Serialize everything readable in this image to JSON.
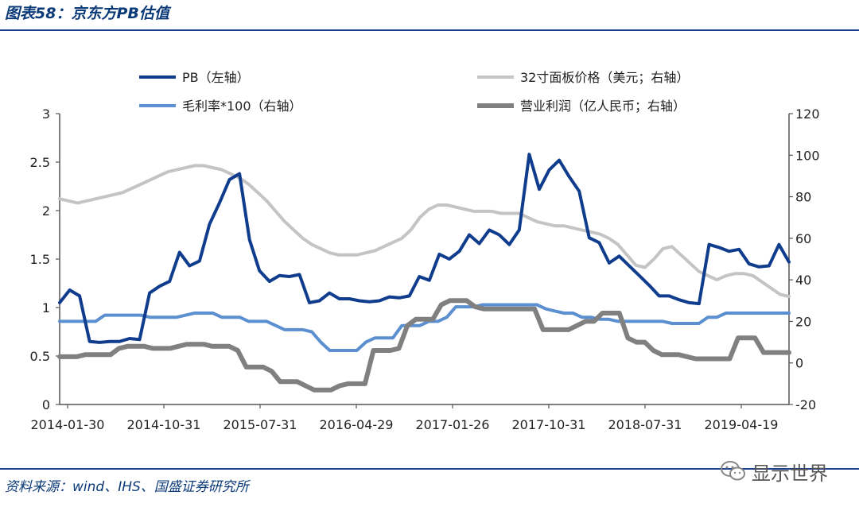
{
  "header": {
    "title": "图表58：京东方PB估值"
  },
  "footer": {
    "source": "资料来源：wind、IHS、国盛证券研究所"
  },
  "watermark": {
    "text": "显示世界"
  },
  "chart_data": {
    "type": "line",
    "x_tick_labels": [
      "2014-01-30",
      "2014-10-31",
      "2015-07-31",
      "2016-04-29",
      "2017-01-26",
      "2017-10-31",
      "2018-07-31",
      "2019-04-19"
    ],
    "x_range": [
      0,
      76
    ],
    "y_left": {
      "ticks": [
        "0",
        "0.5",
        "1",
        "1.5",
        "2",
        "2.5",
        "3"
      ],
      "range": [
        0,
        3
      ]
    },
    "y_right": {
      "ticks": [
        "-20",
        "0",
        "20",
        "40",
        "60",
        "80",
        "100",
        "120"
      ],
      "range": [
        -20,
        120
      ]
    },
    "legend": {
      "position": "top",
      "columns": 2
    },
    "colors": {
      "pb": "#0f3c8c",
      "panel": "#c4c4c4",
      "margin": "#5b8fd0",
      "profit": "#808080",
      "axis": "#555555"
    },
    "series": [
      {
        "name": "PB（左轴）",
        "axis": "left",
        "color": "#0f3c8c",
        "width": 4,
        "values": [
          1.05,
          1.18,
          1.12,
          0.65,
          0.64,
          0.65,
          0.65,
          0.68,
          0.67,
          1.15,
          1.22,
          1.27,
          1.57,
          1.43,
          1.48,
          1.86,
          2.08,
          2.32,
          2.38,
          1.7,
          1.38,
          1.27,
          1.33,
          1.32,
          1.34,
          1.05,
          1.07,
          1.15,
          1.09,
          1.09,
          1.07,
          1.06,
          1.07,
          1.11,
          1.1,
          1.12,
          1.32,
          1.28,
          1.55,
          1.5,
          1.58,
          1.75,
          1.66,
          1.8,
          1.75,
          1.65,
          1.8,
          2.58,
          2.22,
          2.42,
          2.52,
          2.35,
          2.2,
          1.72,
          1.67,
          1.46,
          1.53,
          1.43,
          1.33,
          1.23,
          1.12,
          1.12,
          1.08,
          1.05,
          1.04,
          1.65,
          1.62,
          1.58,
          1.6,
          1.45,
          1.42,
          1.43,
          1.65,
          1.47
        ]
      },
      {
        "name": "32寸面板价格（美元；右轴）",
        "axis": "right",
        "color": "#c4c4c4",
        "width": 4,
        "values": [
          79,
          78,
          77,
          78,
          79,
          80,
          81,
          82,
          84,
          86,
          88,
          90,
          92,
          93,
          94,
          95,
          95,
          94,
          93,
          91,
          89,
          86,
          82,
          78,
          73,
          68,
          64,
          60,
          57,
          55,
          53,
          52,
          52,
          52,
          53,
          54,
          56,
          58,
          60,
          64,
          70,
          74,
          76,
          76,
          75,
          74,
          73,
          73,
          73,
          72,
          72,
          72,
          70,
          68,
          67,
          66,
          66,
          65,
          64,
          63,
          62,
          60,
          57,
          52,
          47,
          46,
          50,
          55,
          56,
          52,
          48,
          44,
          42,
          40,
          42,
          43,
          43,
          42,
          39,
          36,
          33,
          32
        ]
      },
      {
        "name": "毛利率*100（右轴）",
        "axis": "right",
        "color": "#5b8fd0",
        "width": 4,
        "values": [
          20,
          20,
          20,
          20,
          20,
          23,
          23,
          23,
          23,
          23,
          22,
          22,
          22,
          22,
          23,
          24,
          24,
          24,
          22,
          22,
          22,
          20,
          20,
          20,
          18,
          16,
          16,
          16,
          15,
          10,
          6,
          6,
          6,
          6,
          10,
          12,
          12,
          12,
          18,
          18,
          18,
          20,
          20,
          22,
          27,
          27,
          27,
          28,
          28,
          28,
          28,
          28,
          28,
          28,
          26,
          25,
          24,
          24,
          22,
          22,
          21,
          21,
          20,
          20,
          20,
          20,
          20,
          20,
          19,
          19,
          19,
          19,
          22,
          22,
          24,
          24,
          24,
          24,
          24,
          24,
          24,
          24
        ]
      },
      {
        "name": "营业利润（亿人民币；右轴）",
        "axis": "right",
        "color": "#808080",
        "width": 6,
        "values": [
          3,
          3,
          3,
          4,
          4,
          4,
          4,
          7,
          8,
          8,
          8,
          7,
          7,
          7,
          8,
          9,
          9,
          9,
          8,
          8,
          8,
          6,
          -2,
          -2,
          -2,
          -4,
          -9,
          -9,
          -9,
          -11,
          -13,
          -13,
          -13,
          -11,
          -10,
          -10,
          -10,
          6,
          6,
          6,
          7,
          18,
          21,
          21,
          21,
          28,
          30,
          30,
          30,
          27,
          26,
          26,
          26,
          26,
          26,
          26,
          26,
          16,
          16,
          16,
          16,
          18,
          20,
          20,
          24,
          24,
          24,
          12,
          10,
          10,
          6,
          4,
          4,
          4,
          3,
          2,
          2,
          2,
          2,
          2,
          12,
          12,
          12,
          5,
          5,
          5,
          5
        ]
      }
    ]
  }
}
